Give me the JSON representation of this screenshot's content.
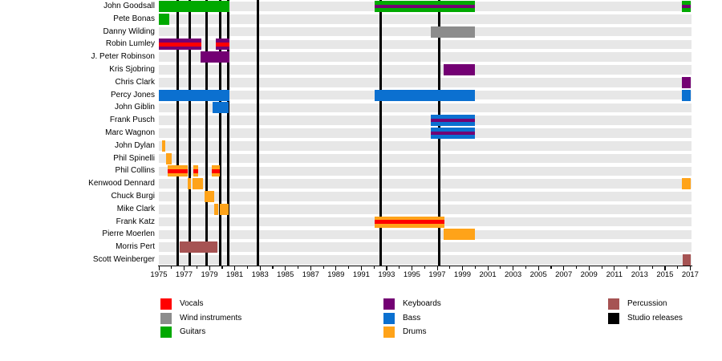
{
  "chart_data": {
    "type": "timeline",
    "description": "Band membership timeline, instruments by color, 1975-2017",
    "x_axis": {
      "start_year": 1975,
      "end_year": 2017.1,
      "labeled_years": [
        1975,
        1977,
        1979,
        1981,
        1983,
        1985,
        1987,
        1989,
        1991,
        1993,
        1995,
        1997,
        1999,
        2001,
        2003,
        2005,
        2007,
        2009,
        2011,
        2013,
        2015,
        2017
      ]
    },
    "colors": {
      "vocals": "#FF0000",
      "wind_instruments": "#8C8C8C",
      "guitars": "#00A900",
      "keyboards": "#730073",
      "bass": "#0B70D0",
      "drums": "#FFA319",
      "percussion": "#A65353",
      "studio_releases": "#000000",
      "row_band": "#E7E7E7"
    },
    "studio_releases_years": [
      1976.5,
      1977.45,
      1978.75,
      1979.85,
      1980.5,
      1982.85,
      1992.5,
      1997.15
    ],
    "members": [
      {
        "name": "John Goodsall",
        "segments": [
          {
            "from": 1975.0,
            "to": 1980.6,
            "role": "guitars"
          },
          {
            "from": 1992.05,
            "to": 2000.0,
            "role": "guitars",
            "stripe": "keyboards"
          },
          {
            "from": 2016.35,
            "to": 2017.05,
            "role": "guitars",
            "stripe": "keyboards"
          }
        ]
      },
      {
        "name": "Pete Bonas",
        "segments": [
          {
            "from": 1975.0,
            "to": 1975.8,
            "role": "guitars"
          }
        ]
      },
      {
        "name": "Danny Wilding",
        "segments": [
          {
            "from": 1996.5,
            "to": 2000.0,
            "role": "wind_instruments"
          }
        ]
      },
      {
        "name": "Robin Lumley",
        "segments": [
          {
            "from": 1975.0,
            "to": 1978.35,
            "role": "keyboards",
            "stripe": "vocals"
          },
          {
            "from": 1979.5,
            "to": 1980.6,
            "role": "keyboards",
            "stripe": "vocals"
          }
        ]
      },
      {
        "name": "J. Peter Robinson",
        "segments": [
          {
            "from": 1978.3,
            "to": 1980.6,
            "role": "keyboards"
          }
        ]
      },
      {
        "name": "Kris Sjobring",
        "segments": [
          {
            "from": 1997.5,
            "to": 2000.0,
            "role": "keyboards"
          }
        ]
      },
      {
        "name": "Chris Clark",
        "segments": [
          {
            "from": 2016.35,
            "to": 2017.05,
            "role": "keyboards"
          }
        ]
      },
      {
        "name": "Percy Jones",
        "segments": [
          {
            "from": 1975.0,
            "to": 1980.6,
            "role": "bass"
          },
          {
            "from": 1992.05,
            "to": 2000.0,
            "role": "bass"
          },
          {
            "from": 2016.35,
            "to": 2017.05,
            "role": "bass"
          }
        ]
      },
      {
        "name": "John Giblin",
        "segments": [
          {
            "from": 1979.25,
            "to": 1980.5,
            "role": "bass"
          }
        ]
      },
      {
        "name": "Frank Pusch",
        "segments": [
          {
            "from": 1996.5,
            "to": 2000.0,
            "role": "bass",
            "stripe": "keyboards"
          }
        ]
      },
      {
        "name": "Marc Wagnon",
        "segments": [
          {
            "from": 1996.5,
            "to": 2000.0,
            "role": "bass",
            "stripe": "keyboards"
          }
        ]
      },
      {
        "name": "John Dylan",
        "segments": [
          {
            "from": 1975.25,
            "to": 1975.5,
            "role": "drums"
          }
        ]
      },
      {
        "name": "Phil Spinelli",
        "segments": [
          {
            "from": 1975.55,
            "to": 1976.0,
            "role": "drums"
          }
        ]
      },
      {
        "name": "Phil Collins",
        "segments": [
          {
            "from": 1975.7,
            "to": 1977.3,
            "role": "drums",
            "stripe": "vocals"
          },
          {
            "from": 1977.7,
            "to": 1978.1,
            "role": "drums",
            "stripe": "vocals"
          },
          {
            "from": 1979.2,
            "to": 1979.85,
            "role": "drums",
            "stripe": "vocals"
          }
        ]
      },
      {
        "name": "Kenwood Dennard",
        "segments": [
          {
            "from": 1977.3,
            "to": 1977.55,
            "role": "drums"
          },
          {
            "from": 1977.65,
            "to": 1978.5,
            "role": "drums"
          },
          {
            "from": 2016.35,
            "to": 2017.05,
            "role": "drums"
          }
        ]
      },
      {
        "name": "Chuck Burgi",
        "segments": [
          {
            "from": 1978.6,
            "to": 1979.35,
            "role": "drums"
          }
        ]
      },
      {
        "name": "Mike Clark",
        "segments": [
          {
            "from": 1979.35,
            "to": 1979.7,
            "role": "drums"
          },
          {
            "from": 1979.8,
            "to": 1980.55,
            "role": "drums"
          }
        ]
      },
      {
        "name": "Frank Katz",
        "segments": [
          {
            "from": 1992.05,
            "to": 1997.55,
            "role": "drums",
            "stripe": "vocals"
          }
        ]
      },
      {
        "name": "Pierre Moerlen",
        "segments": [
          {
            "from": 1997.5,
            "to": 2000.0,
            "role": "drums"
          }
        ]
      },
      {
        "name": "Morris Pert",
        "segments": [
          {
            "from": 1976.65,
            "to": 1979.6,
            "role": "percussion"
          }
        ]
      },
      {
        "name": "Scott Weinberger",
        "segments": [
          {
            "from": 2016.4,
            "to": 2017.05,
            "role": "percussion"
          }
        ]
      }
    ],
    "legend": {
      "columns": [
        {
          "items": [
            {
              "label": "Vocals",
              "color_key": "vocals"
            },
            {
              "label": "Wind instruments",
              "color_key": "wind_instruments"
            },
            {
              "label": "Guitars",
              "color_key": "guitars"
            }
          ]
        },
        {
          "items": [
            {
              "label": "Keyboards",
              "color_key": "keyboards"
            },
            {
              "label": "Bass",
              "color_key": "bass"
            },
            {
              "label": "Drums",
              "color_key": "drums"
            }
          ]
        },
        {
          "items": [
            {
              "label": "Percussion",
              "color_key": "percussion"
            },
            {
              "label": "Studio releases",
              "color_key": "studio_releases"
            }
          ]
        }
      ]
    }
  }
}
